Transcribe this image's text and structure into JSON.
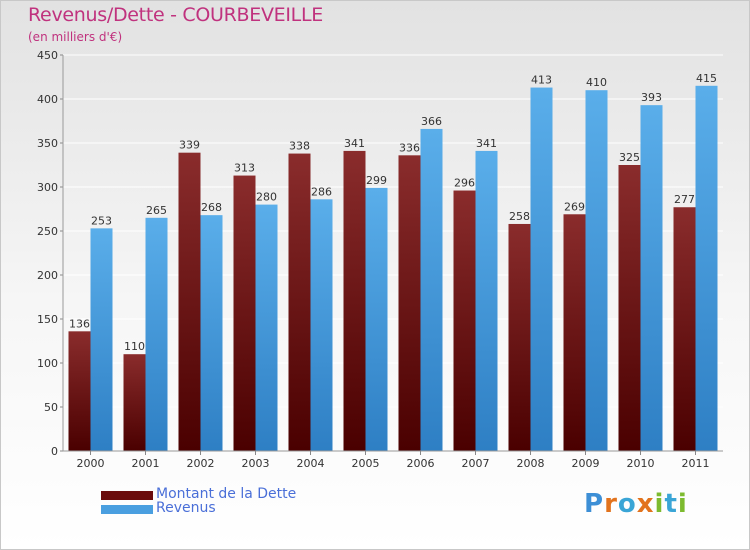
{
  "title": "Revenus/Dette - COURBEVEILLE",
  "subtitle": "(en milliers d'€)",
  "logo": {
    "text": "Proxiti",
    "letter_colors": [
      "#3d8fd6",
      "#e2731d",
      "#3aa5d6",
      "#e2731d",
      "#7dbb2f",
      "#3aa5d6",
      "#7dbb2f"
    ]
  },
  "legend": [
    {
      "label": "Montant de la Dette",
      "color": "#6b0c0c"
    },
    {
      "label": "Revenus",
      "color": "#4a9fe0"
    }
  ],
  "colors": {
    "dette_top": "#8a2c2c",
    "dette_bottom": "#4a0000",
    "revenus_top": "#5aaeea",
    "revenus_bottom": "#2e7fc4",
    "grid": "#ffffff",
    "axis_text": "#333333"
  },
  "chart_data": {
    "type": "bar",
    "categories": [
      "2000",
      "2001",
      "2002",
      "2003",
      "2004",
      "2005",
      "2006",
      "2007",
      "2008",
      "2009",
      "2010",
      "2011"
    ],
    "series": [
      {
        "name": "Montant de la Dette",
        "values": [
          136,
          110,
          339,
          313,
          338,
          341,
          336,
          296,
          258,
          269,
          325,
          277
        ]
      },
      {
        "name": "Revenus",
        "values": [
          253,
          265,
          268,
          280,
          286,
          299,
          366,
          341,
          413,
          410,
          393,
          415
        ]
      }
    ],
    "yticks": [
      0,
      50,
      100,
      150,
      200,
      250,
      300,
      350,
      400,
      450
    ],
    "ylim": [
      0,
      450
    ],
    "grid": true,
    "legend_position": "bottom-left"
  }
}
